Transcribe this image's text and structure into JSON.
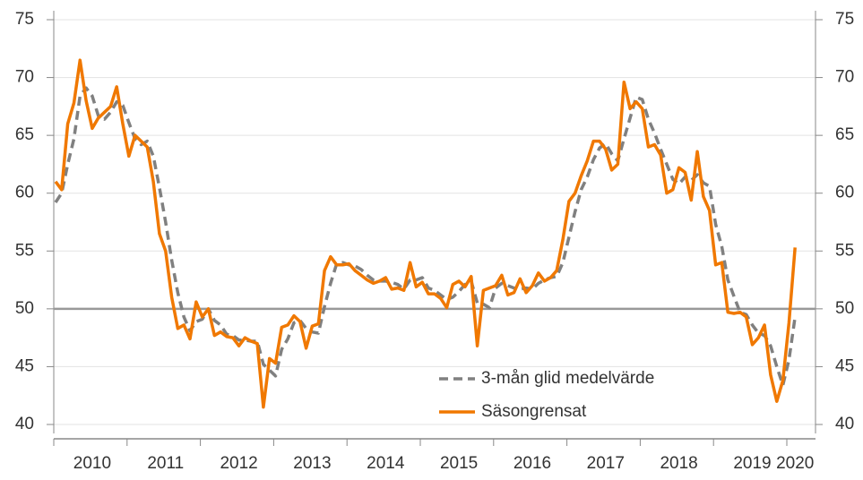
{
  "chart_data": {
    "type": "line",
    "categories": [
      null,
      null,
      null,
      null,
      null,
      null,
      "2010",
      null,
      null,
      null,
      null,
      null,
      null,
      null,
      null,
      null,
      null,
      null,
      "2011",
      null,
      null,
      null,
      null,
      null,
      null,
      null,
      null,
      null,
      null,
      null,
      "2012",
      null,
      null,
      null,
      null,
      null,
      null,
      null,
      null,
      null,
      null,
      null,
      "2013",
      null,
      null,
      null,
      null,
      null,
      null,
      null,
      null,
      null,
      null,
      null,
      "2014",
      null,
      null,
      null,
      null,
      null,
      null,
      null,
      null,
      null,
      null,
      null,
      "2015",
      null,
      null,
      null,
      null,
      null,
      null,
      null,
      null,
      null,
      null,
      null,
      "2016",
      null,
      null,
      null,
      null,
      null,
      null,
      null,
      null,
      null,
      null,
      null,
      "2017",
      null,
      null,
      null,
      null,
      null,
      null,
      null,
      null,
      null,
      null,
      null,
      "2018",
      null,
      null,
      null,
      null,
      null,
      null,
      null,
      null,
      null,
      null,
      null,
      "2019",
      null,
      null,
      null,
      null,
      null,
      null,
      "2020"
    ],
    "series": [
      {
        "name": "3-mån glid medelvärde",
        "color": "#808080",
        "dashed": true,
        "values": [
          59.2,
          60,
          62.5,
          64.7,
          68.4,
          69.1,
          68.4,
          66.7,
          66.4,
          67,
          67.9,
          67.6,
          66.1,
          64.7,
          64.2,
          64.5,
          63.2,
          60.5,
          57.5,
          54.2,
          51.4,
          49.3,
          48.1,
          48.9,
          49.1,
          50,
          49,
          48.6,
          47.8,
          47.7,
          47.3,
          47.3,
          47.2,
          47.2,
          45.2,
          44.7,
          44.2,
          46.5,
          47.4,
          48.8,
          49,
          48.3,
          48,
          47.9,
          50.2,
          52.2,
          53.9,
          54,
          53.8,
          53.7,
          53.4,
          52.9,
          52.5,
          52.4,
          52.4,
          52.3,
          52.1,
          51.7,
          52.5,
          52.5,
          52.7,
          51.8,
          51.6,
          51.2,
          50.8,
          51,
          51.5,
          52.1,
          52.4,
          50.5,
          50.4,
          50.1,
          51.8,
          52.2,
          52,
          51.8,
          51.7,
          51.8,
          51.7,
          52.2,
          52.5,
          52.7,
          52.8,
          54,
          56.2,
          58.4,
          60.3,
          61.4,
          62.9,
          63.9,
          64.3,
          63.4,
          62.8,
          64.7,
          66.5,
          68.3,
          68.1,
          66.4,
          65.2,
          63.8,
          62.5,
          61.2,
          60.8,
          61.4,
          61.1,
          61.6,
          60.9,
          60.6,
          57.3,
          55.4,
          52.5,
          51.1,
          49.7,
          49.5,
          48.6,
          47.9,
          47.7,
          46.8,
          45,
          43.4,
          45.6,
          49.3
        ]
      },
      {
        "name": "Säsongrensat",
        "color": "#f07800",
        "dashed": false,
        "values": [
          61,
          60.3,
          66,
          67.8,
          71.5,
          68,
          65.6,
          66.5,
          67,
          67.5,
          69.2,
          66,
          63.2,
          65,
          64.5,
          64,
          61,
          56.5,
          55,
          51,
          48.3,
          48.6,
          47.4,
          50.6,
          49.3,
          50,
          47.7,
          48,
          47.6,
          47.5,
          46.8,
          47.5,
          47.2,
          47,
          41.5,
          45.7,
          45.3,
          48.4,
          48.6,
          49.4,
          48.9,
          46.6,
          48.5,
          48.7,
          53.3,
          54.5,
          53.8,
          53.8,
          53.9,
          53.3,
          52.9,
          52.5,
          52.2,
          52.4,
          52.7,
          51.7,
          51.8,
          51.6,
          54,
          51.9,
          52.3,
          51.3,
          51.3,
          50.9,
          50.1,
          52.1,
          52.4,
          51.9,
          52.8,
          46.8,
          51.6,
          51.8,
          52,
          52.9,
          51.2,
          51.4,
          52.6,
          51.4,
          52,
          53.1,
          52.4,
          52.7,
          53.3,
          56,
          59.3,
          60,
          61.5,
          62.8,
          64.5,
          64.5,
          63.8,
          62,
          62.5,
          69.6,
          67.3,
          67.9,
          67.3,
          64,
          64.2,
          63.3,
          60,
          60.3,
          62.2,
          61.8,
          59.4,
          63.6,
          59.7,
          58.5,
          53.8,
          54,
          49.7,
          49.6,
          49.7,
          49.3,
          46.9,
          47.5,
          48.6,
          44.3,
          42,
          43.8,
          48.8,
          55.3
        ]
      }
    ],
    "ylim": [
      40,
      75
    ],
    "yticks": [
      40,
      45,
      50,
      55,
      60,
      65,
      70,
      75
    ],
    "grid": true,
    "hline": 50,
    "legend": "lower-right"
  }
}
